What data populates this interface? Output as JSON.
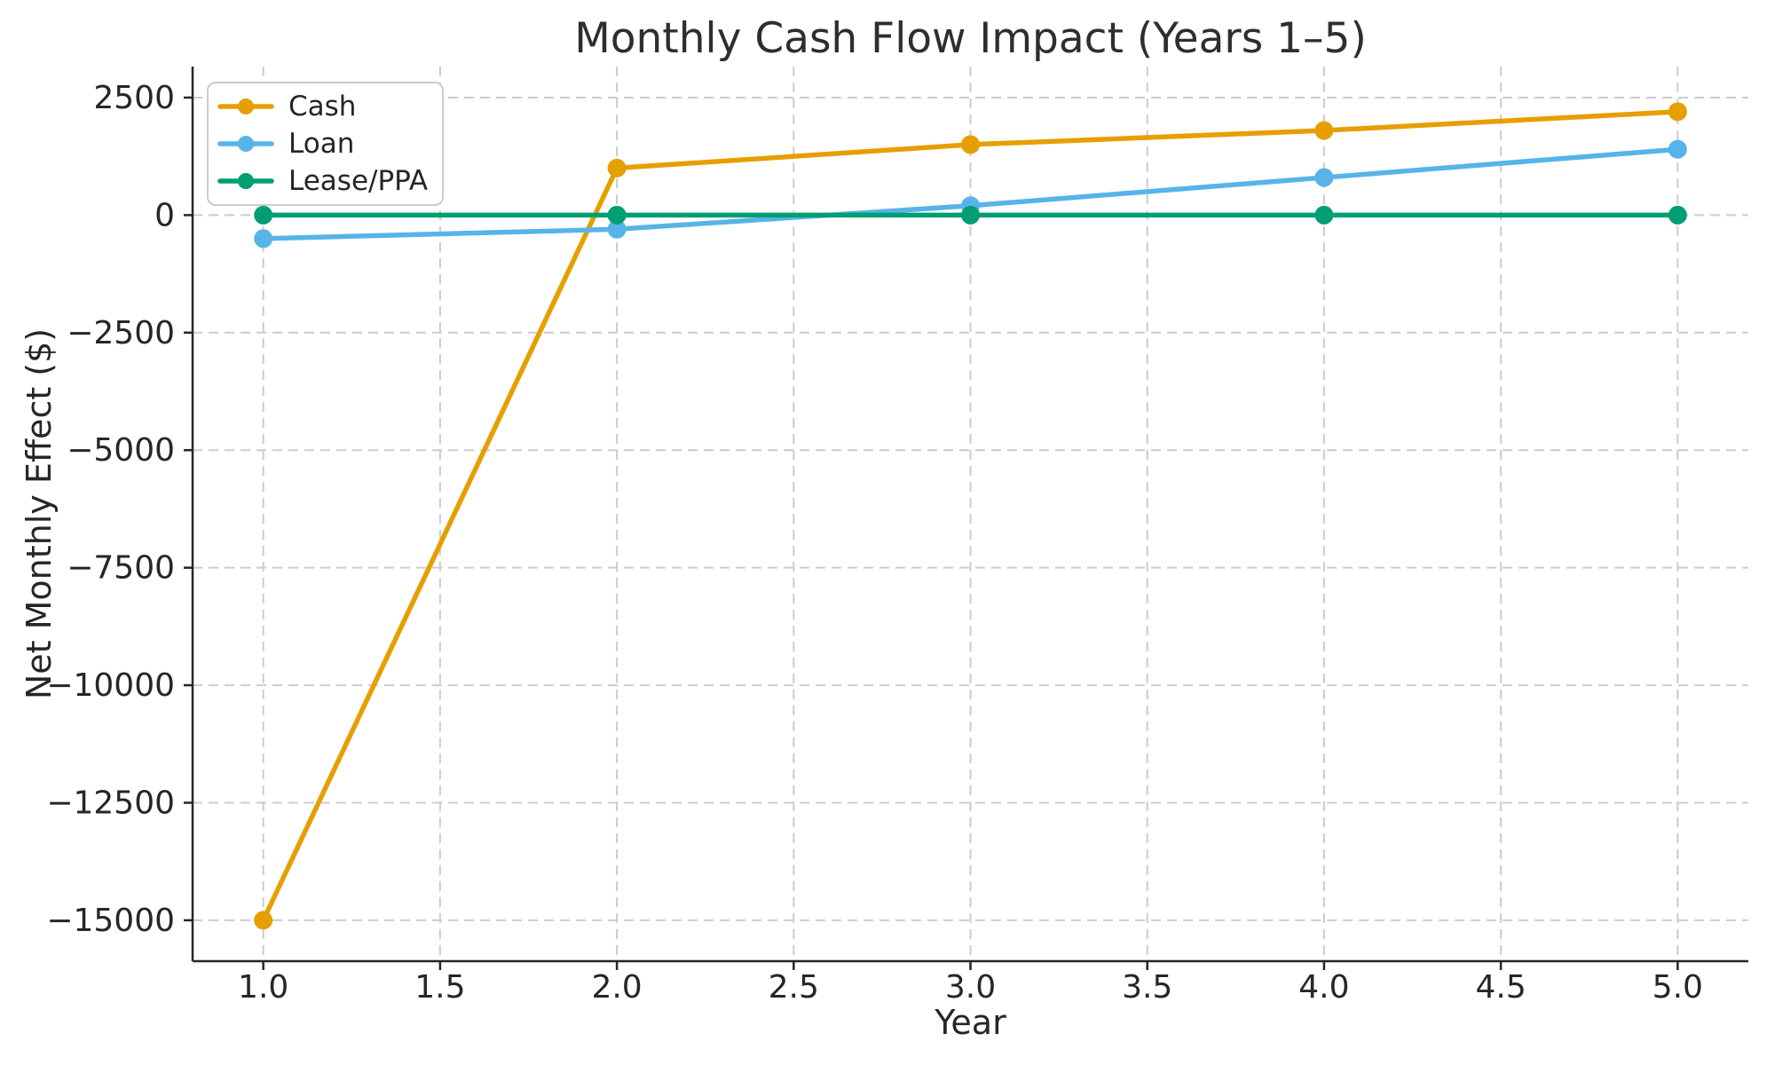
{
  "chart_data": {
    "type": "line",
    "title": "Monthly Cash Flow Impact (Years 1–5)",
    "xlabel": "Year",
    "ylabel": "Net Monthly Effect ($)",
    "x": [
      1,
      2,
      3,
      4,
      5
    ],
    "series": [
      {
        "name": "Cash",
        "color": "#E69F00",
        "values": [
          -15000,
          1000,
          1500,
          1800,
          2200
        ]
      },
      {
        "name": "Loan",
        "color": "#56B4E9",
        "values": [
          -500,
          -300,
          200,
          800,
          1400
        ]
      },
      {
        "name": "Lease/PPA",
        "color": "#009E73",
        "values": [
          0,
          0,
          0,
          0,
          0
        ]
      }
    ],
    "xticks": {
      "values": [
        1.0,
        1.5,
        2.0,
        2.5,
        3.0,
        3.5,
        4.0,
        4.5,
        5.0
      ],
      "labels": [
        "1.0",
        "1.5",
        "2.0",
        "2.5",
        "3.0",
        "3.5",
        "4.0",
        "4.5",
        "5.0"
      ]
    },
    "yticks": {
      "values": [
        2500,
        0,
        -2500,
        -5000,
        -7500,
        -10000,
        -12500,
        -15000
      ],
      "labels": [
        "2500",
        "0",
        "−2500",
        "−5000",
        "−7500",
        "−10000",
        "−12500",
        "−15000"
      ]
    },
    "xlim": [
      0.8,
      5.2
    ],
    "ylim": [
      -15870,
      3160
    ],
    "grid": true,
    "legend_position": "upper left",
    "colors": {
      "grid": "#cccccc",
      "axis": "#262626",
      "text": "#262626",
      "background": "#ffffff",
      "legend_border": "#cccccc"
    }
  }
}
